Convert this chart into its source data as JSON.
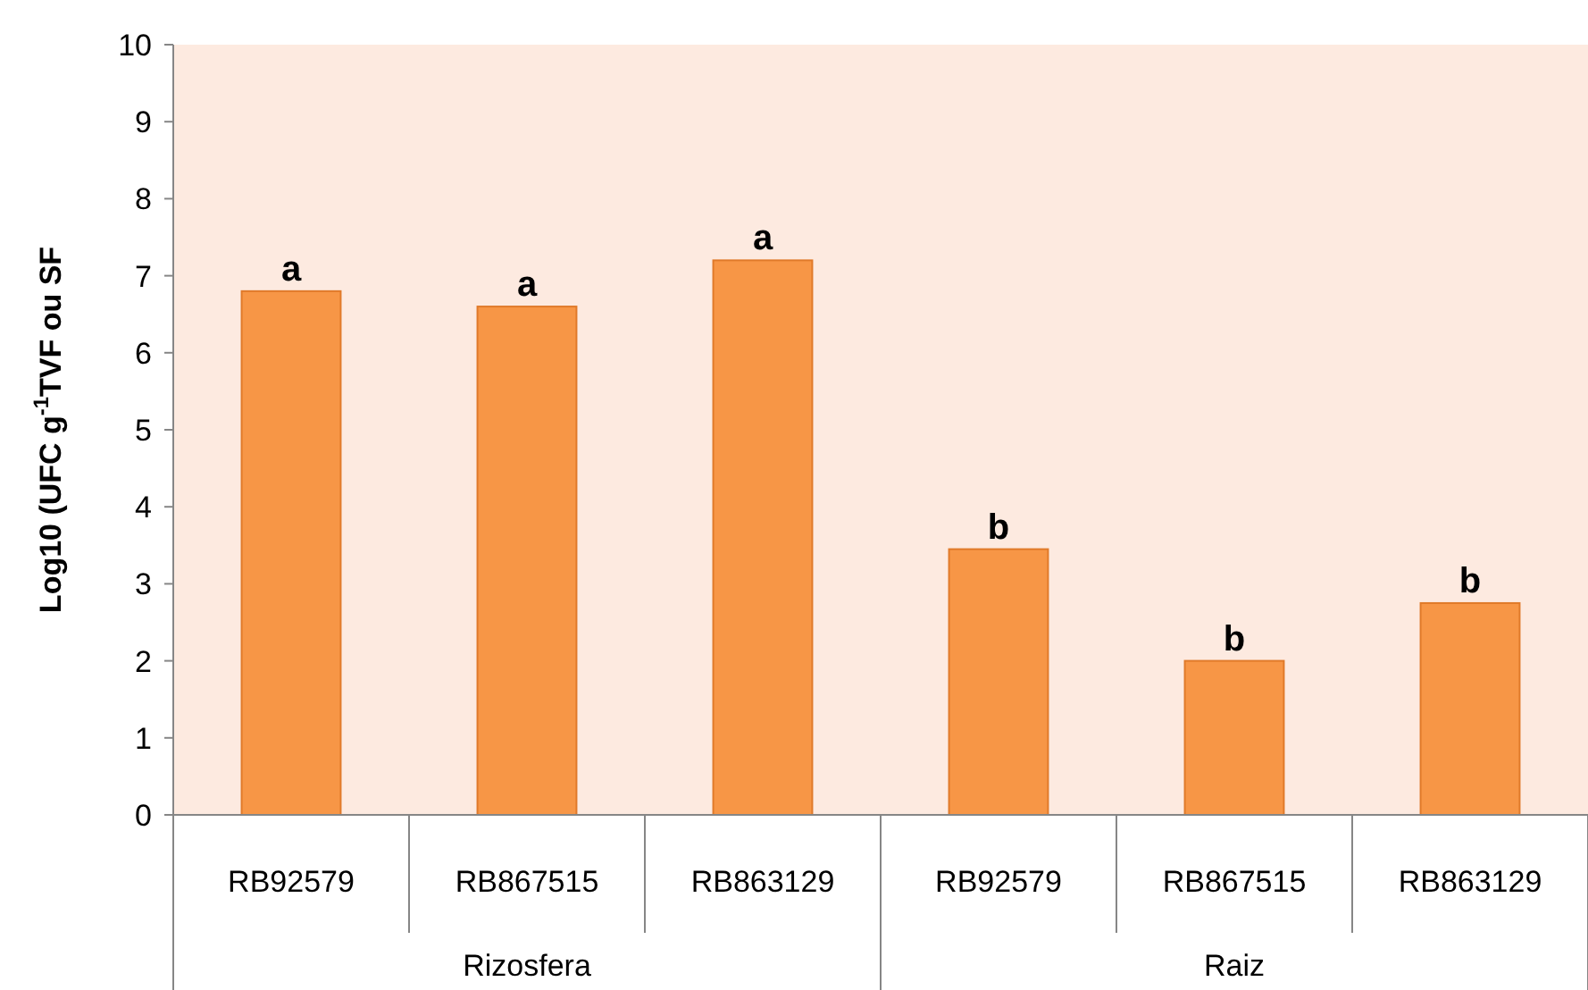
{
  "chart_data": {
    "type": "bar",
    "ylabel": "Log10 (UFC g$^{-1}$TVF ou SF",
    "categories": [
      "RB92579",
      "RB867515",
      "RB863129",
      "RB92579",
      "RB867515",
      "RB863129"
    ],
    "values": [
      6.8,
      6.6,
      7.2,
      3.45,
      2.0,
      2.75
    ],
    "color": "#f79646",
    "ylim": [
      0,
      10
    ],
    "yticks": [
      0,
      1,
      2,
      3,
      4,
      5,
      6,
      7,
      8,
      9,
      10
    ],
    "grid": false,
    "annotations": [
      "a",
      "a",
      "a",
      "b",
      "b",
      "b",
      "Rizosfera",
      "Raiz"
    ]
  }
}
